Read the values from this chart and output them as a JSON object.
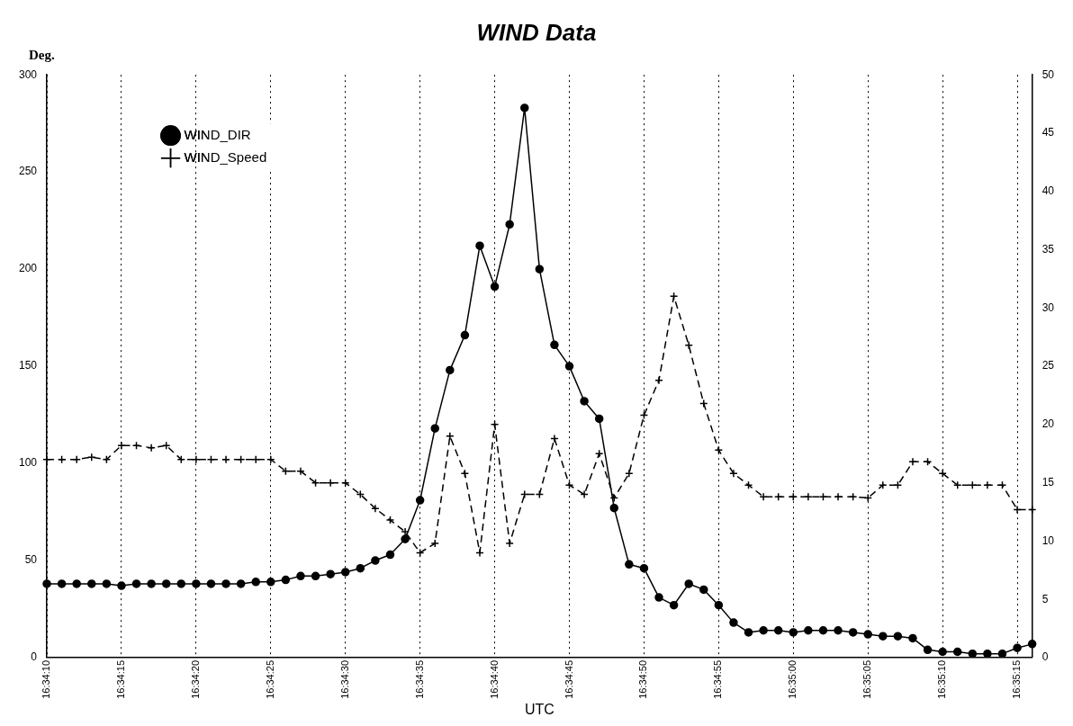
{
  "chart_data": {
    "type": "line",
    "title": "WIND Data",
    "xlabel": "UTC",
    "ylabel": "Deg.",
    "categories": [
      "16:34:10",
      null,
      null,
      null,
      null,
      "16:34:15",
      null,
      null,
      null,
      null,
      "16:34:20",
      null,
      null,
      null,
      null,
      "16:34:25",
      null,
      null,
      null,
      null,
      "16:34:30",
      null,
      null,
      null,
      null,
      "16:34:35",
      null,
      null,
      null,
      null,
      "16:34:40",
      null,
      null,
      null,
      null,
      "16:34:45",
      null,
      null,
      null,
      null,
      "16:34:50",
      null,
      null,
      null,
      null,
      "16:34:55",
      null,
      null,
      null,
      null,
      "16:35:00",
      null,
      null,
      null,
      null,
      "16:35:05",
      null,
      null,
      null,
      null,
      "16:35:10",
      null,
      null,
      null,
      null,
      "16:35:15",
      null
    ],
    "series": [
      {
        "name": "WIND_DIR",
        "color": "#000000",
        "marker": "circle",
        "line_style": "solid",
        "values": [
          38,
          38,
          38,
          38,
          38,
          37,
          38,
          38,
          38,
          38,
          38,
          38,
          38,
          38,
          39,
          39,
          40,
          42,
          42,
          43,
          44,
          46,
          50,
          53,
          61,
          81,
          118,
          148,
          166,
          212,
          191,
          223,
          283,
          200,
          161,
          150,
          132,
          123,
          77,
          48,
          46,
          31,
          27,
          38,
          35,
          27,
          18,
          13,
          14,
          14,
          13,
          14,
          14,
          14,
          13,
          12,
          11,
          11,
          10,
          4,
          3,
          3,
          2,
          2,
          2,
          5,
          7
        ]
      },
      {
        "name": "WIND_Speed",
        "color": "#000000",
        "marker": "cross",
        "line_style": "dashed",
        "axis": "y2",
        "values": [
          17.0,
          17.0,
          17.0,
          17.2,
          17.0,
          18.2,
          18.2,
          18.0,
          18.2,
          17.0,
          17.0,
          17.0,
          17.0,
          17.0,
          17.0,
          17.0,
          16.0,
          16.0,
          15.0,
          15.0,
          15.0,
          14.0,
          12.8,
          11.8,
          10.8,
          9.0,
          9.8,
          19.0,
          15.8,
          9.0,
          20.0,
          9.8,
          14.0,
          14.0,
          18.8,
          14.8,
          14.0,
          17.5,
          13.7,
          15.8,
          20.8,
          23.8,
          31.0,
          26.8,
          21.8,
          17.8,
          15.8,
          14.8,
          13.8,
          13.8,
          13.8,
          13.8,
          13.8,
          13.8,
          13.8,
          13.7,
          14.8,
          14.8,
          16.8,
          16.8,
          15.8,
          14.8,
          14.8,
          14.8,
          14.8,
          12.7,
          12.7
        ]
      }
    ],
    "ylim": [
      0,
      300
    ],
    "yticks": [
      0,
      50,
      100,
      150,
      200,
      250,
      300
    ],
    "y2lim": [
      0,
      50
    ],
    "y2ticks": [
      0,
      5,
      10,
      15,
      20,
      25,
      30,
      35,
      40,
      45,
      50
    ],
    "grid": "x",
    "legend": "top left"
  }
}
